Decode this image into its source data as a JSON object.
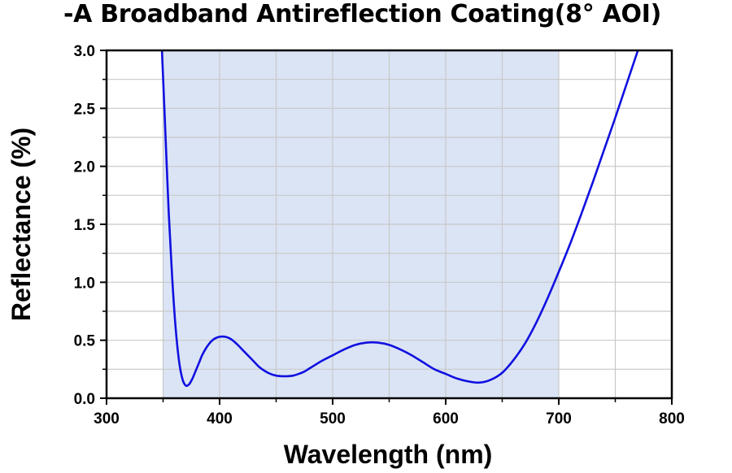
{
  "chart_data": {
    "type": "line",
    "title": "-A Broadband Antireflection Coating(8° AOI)",
    "xlabel": "Wavelength (nm)",
    "ylabel": "Reflectance (%)",
    "xlim": [
      300,
      800
    ],
    "ylim": [
      0,
      3.0
    ],
    "x_ticks": [
      300,
      400,
      500,
      600,
      700,
      800
    ],
    "x_tick_labels": [
      "300",
      "400",
      "500",
      "600",
      "700",
      "800"
    ],
    "y_ticks": [
      0,
      0.5,
      1.0,
      1.5,
      2.0,
      2.5,
      3.0
    ],
    "y_tick_labels": [
      "0.0",
      "0.5",
      "1.0",
      "1.5",
      "2.0",
      "2.5",
      "3.0"
    ],
    "grid": true,
    "design_band": [
      350,
      700
    ],
    "colors": {
      "line": "#1010e0",
      "band": "#dbe4f5",
      "grid": "#c8c8c8"
    },
    "series": [
      {
        "x": [
          349,
          352,
          355,
          358,
          361,
          364,
          367,
          370,
          373,
          376,
          379,
          382,
          385,
          390,
          395,
          400,
          405,
          410,
          415,
          420,
          425,
          430,
          435,
          440,
          445,
          450,
          455,
          460,
          465,
          470,
          475,
          480,
          490,
          500,
          510,
          520,
          530,
          540,
          550,
          560,
          570,
          580,
          590,
          600,
          610,
          620,
          630,
          640,
          650,
          660,
          670,
          680,
          690,
          700,
          710,
          720,
          730,
          740,
          750,
          760,
          770
        ],
        "y": [
          3.0,
          2.3,
          1.6,
          1.05,
          0.62,
          0.33,
          0.17,
          0.11,
          0.12,
          0.17,
          0.24,
          0.31,
          0.38,
          0.46,
          0.51,
          0.53,
          0.53,
          0.51,
          0.47,
          0.42,
          0.37,
          0.32,
          0.27,
          0.235,
          0.21,
          0.195,
          0.19,
          0.19,
          0.195,
          0.21,
          0.23,
          0.26,
          0.32,
          0.37,
          0.42,
          0.46,
          0.48,
          0.48,
          0.46,
          0.42,
          0.37,
          0.31,
          0.25,
          0.21,
          0.17,
          0.145,
          0.135,
          0.16,
          0.22,
          0.33,
          0.47,
          0.65,
          0.86,
          1.09,
          1.33,
          1.59,
          1.86,
          2.14,
          2.42,
          2.71,
          3.0
        ]
      }
    ]
  }
}
